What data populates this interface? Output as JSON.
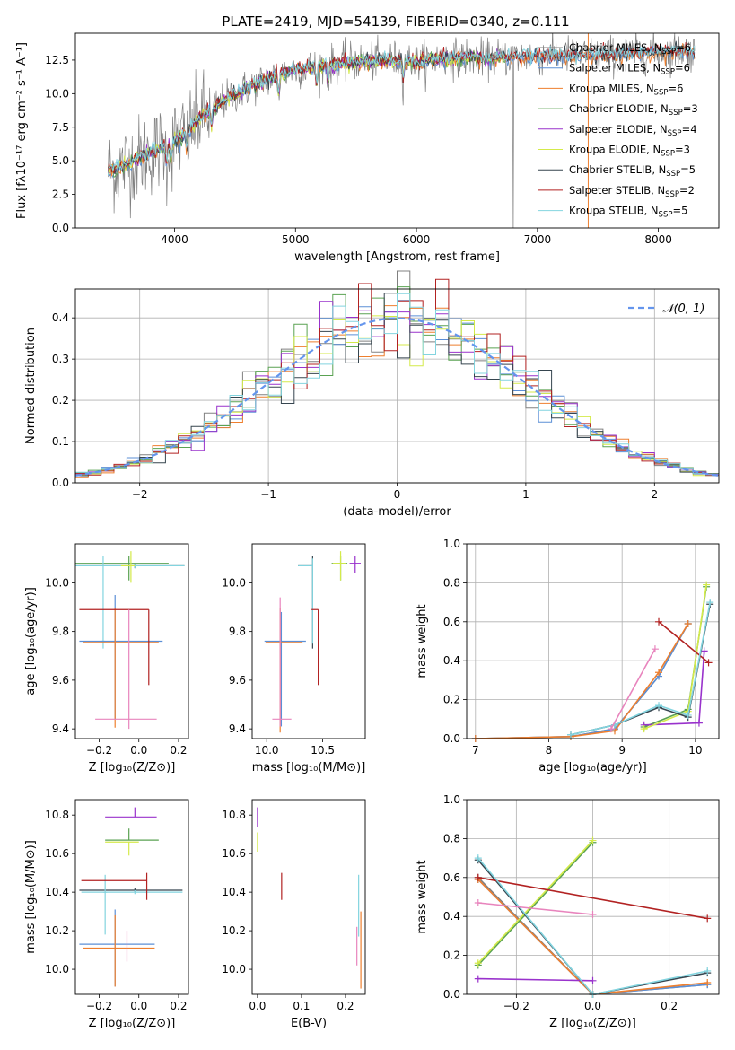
{
  "figure_title": "PLATE=2419, MJD=54139, FIBERID=0340, z=0.111",
  "colors": {
    "chabrier_miles": "#808080",
    "salpeter_miles": "#5b8fd6",
    "kroupa_miles": "#ee7f2e",
    "chabrier_elodie": "#5aa252",
    "salpeter_elodie": "#9932cc",
    "kroupa_elodie": "#d4ea4a",
    "chabrier_stelib": "#36454f",
    "salpeter_stelib": "#b22222",
    "kroupa_stelib": "#82d4df",
    "pink": "#e884bd",
    "normal": "#6495ed",
    "grid": "#b0b0b0"
  },
  "chart_data": [
    {
      "id": "spectrum",
      "type": "line",
      "xlabel": "wavelength [Angstrom, rest frame]",
      "ylabel": "Flux [fλ10⁻¹⁷ erg cm⁻² s⁻¹ A⁻¹]",
      "xlim": [
        3180,
        8500
      ],
      "ylim": [
        0,
        14.5
      ],
      "xticks": [
        4000,
        5000,
        6000,
        7000,
        8000
      ],
      "yticks": [
        0.0,
        2.5,
        5.0,
        7.5,
        10.0,
        12.5
      ],
      "grid": false,
      "legend_position": "right",
      "continuum": {
        "x": [
          3450,
          3550,
          3650,
          3750,
          3850,
          3950,
          4050,
          4150,
          4250,
          4350,
          4450,
          4600,
          4800,
          5000,
          5200,
          5400,
          5600,
          5800,
          6000,
          6200,
          6400,
          6600,
          6800,
          7000,
          7200,
          7400,
          7600,
          7800,
          8000,
          8200,
          8300
        ],
        "y": [
          4.3,
          4.5,
          5.0,
          5.4,
          5.8,
          6.2,
          6.8,
          7.6,
          8.5,
          9.1,
          9.7,
          10.4,
          11.2,
          11.8,
          12.1,
          12.3,
          12.4,
          12.5,
          12.4,
          12.6,
          12.7,
          12.6,
          12.8,
          12.8,
          12.9,
          12.8,
          12.9,
          13.0,
          13.1,
          13.2,
          13.1
        ]
      },
      "legend": [
        {
          "label": "Chabrier MILES, N",
          "sub": "SSP",
          "value": "=6",
          "color_key": "chabrier_miles"
        },
        {
          "label": "Salpeter MILES, N",
          "sub": "SSP",
          "value": "=6",
          "color_key": "salpeter_miles"
        },
        {
          "label": "Kroupa MILES, N",
          "sub": "SSP",
          "value": "=6",
          "color_key": "kroupa_miles"
        },
        {
          "label": "Chabrier ELODIE, N",
          "sub": "SSP",
          "value": "=3",
          "color_key": "chabrier_elodie"
        },
        {
          "label": "Salpeter ELODIE, N",
          "sub": "SSP",
          "value": "=4",
          "color_key": "salpeter_elodie"
        },
        {
          "label": "Kroupa ELODIE, N",
          "sub": "SSP",
          "value": "=3",
          "color_key": "kroupa_elodie"
        },
        {
          "label": "Chabrier STELIB, N",
          "sub": "SSP",
          "value": "=5",
          "color_key": "chabrier_stelib"
        },
        {
          "label": "Salpeter STELIB, N",
          "sub": "SSP",
          "value": "=2",
          "color_key": "salpeter_stelib"
        },
        {
          "label": "Kroupa STELIB, N",
          "sub": "SSP",
          "value": "=5",
          "color_key": "kroupa_stelib"
        }
      ]
    },
    {
      "id": "residuals",
      "type": "histogram",
      "xlabel": "(data-model)/error",
      "ylabel": "Normed distribution",
      "xlim": [
        -2.5,
        2.5
      ],
      "ylim": [
        0,
        0.47
      ],
      "xticks": [
        -2,
        -1,
        0,
        1,
        2
      ],
      "yticks": [
        0.0,
        0.1,
        0.2,
        0.3,
        0.4
      ],
      "grid": true,
      "bin_width": 0.1,
      "legend": [
        {
          "label": "𝒩(0, 1)",
          "color_key": "normal",
          "style": "dashed"
        }
      ],
      "legend_position": "top-right",
      "reference_curve": "normal(0,1)"
    },
    {
      "id": "age_vs_Z",
      "type": "errorbar",
      "xlabel": "Z [log₁₀(Z/Z⊙)]",
      "ylabel": "age  [log₁₀(age/yr)]",
      "xlim": [
        -0.32,
        0.25
      ],
      "ylim": [
        9.36,
        10.16
      ],
      "xticks": [
        -0.2,
        0.0,
        0.2
      ],
      "yticks": [
        9.4,
        9.6,
        9.8,
        10.0
      ],
      "grid": false,
      "points": [
        {
          "x": -0.02,
          "xl": 0.31,
          "xr": 0.25,
          "y": 10.07,
          "yl": 0.01,
          "yu": 0.01,
          "color_key": "chabrier_stelib"
        },
        {
          "x": -0.02,
          "xl": 0.31,
          "xr": 0.25,
          "y": 10.07,
          "yl": 0.01,
          "yu": 0.01,
          "color_key": "kroupa_stelib"
        },
        {
          "x": -0.05,
          "xl": 0.27,
          "xr": 0.2,
          "y": 10.08,
          "yl": 0.07,
          "yu": 0.03,
          "color_key": "chabrier_elodie"
        },
        {
          "x": -0.04,
          "xl": 0.05,
          "xr": 0.02,
          "y": 10.07,
          "yl": 0.07,
          "yu": 0.06,
          "color_key": "kroupa_elodie"
        },
        {
          "x": -0.18,
          "xl": 0.01,
          "xr": 0.01,
          "y": 9.76,
          "yl": 0.03,
          "yu": 0.35,
          "color_key": "kroupa_stelib"
        },
        {
          "x": -0.12,
          "xl": 0.18,
          "xr": 0.24,
          "y": 9.76,
          "yl": 0.32,
          "yu": 0.19,
          "color_key": "salpeter_miles"
        },
        {
          "x": -0.12,
          "xl": 0.16,
          "xr": 0.22,
          "y": 9.755,
          "yl": 0.35,
          "yu": 0.14,
          "color_key": "kroupa_miles"
        },
        {
          "x": -0.1,
          "xl": 0.2,
          "xr": 0.15,
          "y": 9.89,
          "yl": 0.0,
          "yu": 0.0,
          "color_key": "salpeter_stelib"
        },
        {
          "x": 0.05,
          "xl": 0.0,
          "xr": 0.0,
          "y": 9.7,
          "yl": 0.12,
          "yu": 0.19,
          "color_key": "salpeter_stelib"
        },
        {
          "x": -0.05,
          "xl": 0.17,
          "xr": 0.14,
          "y": 9.44,
          "yl": 0.04,
          "yu": 0.45,
          "color_key": "pink"
        }
      ]
    },
    {
      "id": "age_vs_mass",
      "type": "errorbar",
      "xlabel": "mass [log₁₀(M/M⊙)]",
      "ylabel": "",
      "xlim": [
        9.87,
        10.88
      ],
      "ylim": [
        9.36,
        10.16
      ],
      "xticks": [
        10.0,
        10.5
      ],
      "yticks": [
        9.4,
        9.6,
        9.8,
        10.0
      ],
      "grid": false,
      "points": [
        {
          "x": 10.41,
          "xl": 0.13,
          "xr": 0.0,
          "y": 10.07,
          "yl": 0.34,
          "yu": 0.04,
          "color_key": "chabrier_stelib"
        },
        {
          "x": 10.41,
          "xl": 0.13,
          "xr": 0.0,
          "y": 10.07,
          "yl": 0.32,
          "yu": 0.03,
          "color_key": "kroupa_stelib"
        },
        {
          "x": 10.66,
          "xl": 0.08,
          "xr": 0.06,
          "y": 10.08,
          "yl": 0.07,
          "yu": 0.03,
          "color_key": "chabrier_elodie"
        },
        {
          "x": 10.66,
          "xl": 0.07,
          "xr": 0.05,
          "y": 10.08,
          "yl": 0.07,
          "yu": 0.05,
          "color_key": "kroupa_elodie"
        },
        {
          "x": 10.79,
          "xl": 0.05,
          "xr": 0.05,
          "y": 10.08,
          "yl": 0.04,
          "yu": 0.03,
          "color_key": "salpeter_elodie"
        },
        {
          "x": 10.13,
          "xl": 0.15,
          "xr": 0.22,
          "y": 9.76,
          "yl": 0.35,
          "yu": 0.12,
          "color_key": "salpeter_miles"
        },
        {
          "x": 10.12,
          "xl": 0.13,
          "xr": 0.2,
          "y": 9.755,
          "yl": 0.37,
          "yu": 0.14,
          "color_key": "kroupa_miles"
        },
        {
          "x": 10.46,
          "xl": 0.06,
          "xr": 0.0,
          "y": 9.89,
          "yl": 0.31,
          "yu": 0.0,
          "color_key": "salpeter_stelib"
        },
        {
          "x": 10.12,
          "xl": 0.07,
          "xr": 0.1,
          "y": 9.44,
          "yl": 0.03,
          "yu": 0.5,
          "color_key": "pink"
        }
      ]
    },
    {
      "id": "weight_vs_age",
      "type": "line",
      "xlabel": "age  [log₁₀(age/yr)]",
      "ylabel": "mass weight",
      "xlim": [
        6.88,
        10.32
      ],
      "ylim": [
        0,
        1.0
      ],
      "xticks": [
        7,
        8,
        9,
        10
      ],
      "yticks": [
        0.0,
        0.2,
        0.4,
        0.6,
        0.8,
        1.0
      ],
      "grid": true,
      "series": [
        {
          "color_key": "chabrier_miles",
          "x": [
            7.0,
            8.3,
            8.9,
            9.5,
            9.9
          ],
          "y": [
            0.0,
            0.01,
            0.05,
            0.32,
            0.59
          ]
        },
        {
          "color_key": "salpeter_miles",
          "x": [
            7.0,
            8.3,
            8.9,
            9.5,
            9.9
          ],
          "y": [
            0.0,
            0.01,
            0.05,
            0.32,
            0.59
          ]
        },
        {
          "color_key": "kroupa_miles",
          "x": [
            7.0,
            8.3,
            8.9,
            9.5,
            9.9
          ],
          "y": [
            0.0,
            0.01,
            0.04,
            0.34,
            0.59
          ]
        },
        {
          "color_key": "chabrier_elodie",
          "x": [
            9.3,
            9.9,
            10.15
          ],
          "y": [
            0.06,
            0.15,
            0.78
          ]
        },
        {
          "color_key": "salpeter_elodie",
          "x": [
            9.3,
            10.05,
            10.12
          ],
          "y": [
            0.07,
            0.08,
            0.45
          ]
        },
        {
          "color_key": "kroupa_elodie",
          "x": [
            9.3,
            9.9,
            10.15
          ],
          "y": [
            0.05,
            0.14,
            0.79
          ]
        },
        {
          "color_key": "chabrier_stelib",
          "x": [
            8.3,
            8.9,
            9.5,
            9.9,
            10.2
          ],
          "y": [
            0.02,
            0.07,
            0.16,
            0.11,
            0.69
          ]
        },
        {
          "color_key": "salpeter_stelib",
          "x": [
            9.5,
            10.18
          ],
          "y": [
            0.6,
            0.39
          ]
        },
        {
          "color_key": "kroupa_stelib",
          "x": [
            8.3,
            8.9,
            9.5,
            9.9,
            10.2
          ],
          "y": [
            0.02,
            0.07,
            0.17,
            0.12,
            0.7
          ]
        },
        {
          "color_key": "pink",
          "x": [
            8.85,
            9.45
          ],
          "y": [
            0.05,
            0.46
          ]
        }
      ]
    },
    {
      "id": "mass_vs_Z",
      "type": "errorbar",
      "xlabel": "Z [log₁₀(Z/Z⊙)]",
      "ylabel": "mass [log₁₀(M/M⊙)]",
      "xlim": [
        -0.32,
        0.25
      ],
      "ylim": [
        9.87,
        10.88
      ],
      "xticks": [
        -0.2,
        0.0,
        0.2
      ],
      "yticks": [
        10.0,
        10.2,
        10.4,
        10.6,
        10.8
      ],
      "grid": false,
      "points": [
        {
          "x": -0.02,
          "xl": 0.28,
          "xr": 0.24,
          "y": 10.41,
          "yl": 0.01,
          "yu": 0.01,
          "color_key": "chabrier_stelib"
        },
        {
          "x": -0.02,
          "xl": 0.27,
          "xr": 0.24,
          "y": 10.4,
          "yl": 0.01,
          "yu": 0.01,
          "color_key": "kroupa_stelib"
        },
        {
          "x": -0.02,
          "xl": 0.15,
          "xr": 0.11,
          "y": 10.79,
          "yl": 0.0,
          "yu": 0.05,
          "color_key": "salpeter_elodie"
        },
        {
          "x": -0.05,
          "xl": 0.12,
          "xr": 0.15,
          "y": 10.67,
          "yl": 0.0,
          "yu": 0.06,
          "color_key": "chabrier_elodie"
        },
        {
          "x": -0.05,
          "xl": 0.12,
          "xr": 0.05,
          "y": 10.66,
          "yl": 0.07,
          "yu": 0.0,
          "color_key": "kroupa_elodie"
        },
        {
          "x": -0.17,
          "xl": 0.01,
          "xr": 0.01,
          "y": 10.4,
          "yl": 0.22,
          "yu": 0.09,
          "color_key": "kroupa_stelib"
        },
        {
          "x": -0.1,
          "xl": 0.19,
          "xr": 0.14,
          "y": 10.46,
          "yl": 0.0,
          "yu": 0.0,
          "color_key": "salpeter_stelib"
        },
        {
          "x": 0.04,
          "xl": 0.0,
          "xr": 0.0,
          "y": 10.43,
          "yl": 0.07,
          "yu": 0.07,
          "color_key": "salpeter_stelib"
        },
        {
          "x": -0.12,
          "xl": 0.18,
          "xr": 0.2,
          "y": 10.13,
          "yl": 0.22,
          "yu": 0.18,
          "color_key": "salpeter_miles"
        },
        {
          "x": -0.12,
          "xl": 0.16,
          "xr": 0.2,
          "y": 10.11,
          "yl": 0.2,
          "yu": 0.17,
          "color_key": "kroupa_miles"
        },
        {
          "x": -0.06,
          "xl": 0.0,
          "xr": 0.0,
          "y": 10.13,
          "yl": 0.09,
          "yu": 0.07,
          "color_key": "pink"
        }
      ]
    },
    {
      "id": "mass_vs_EBV",
      "type": "errorbar",
      "xlabel": "E(B-V)",
      "ylabel": "",
      "xlim": [
        -0.012,
        0.245
      ],
      "ylim": [
        9.87,
        10.88
      ],
      "xticks": [
        0.0,
        0.1,
        0.2
      ],
      "yticks": [
        10.0,
        10.2,
        10.4,
        10.6,
        10.8
      ],
      "grid": false,
      "points": [
        {
          "x": 0.0,
          "y": 10.79,
          "yl": 0.05,
          "yu": 0.05,
          "color_key": "salpeter_elodie"
        },
        {
          "x": 0.0,
          "y": 10.66,
          "yl": 0.05,
          "yu": 0.05,
          "color_key": "kroupa_elodie"
        },
        {
          "x": 0.055,
          "y": 10.43,
          "yl": 0.07,
          "yu": 0.07,
          "color_key": "salpeter_stelib"
        },
        {
          "x": 0.23,
          "y": 10.33,
          "yl": 0.16,
          "yu": 0.16,
          "color_key": "kroupa_stelib"
        },
        {
          "x": 0.226,
          "y": 10.12,
          "yl": 0.1,
          "yu": 0.1,
          "color_key": "pink"
        },
        {
          "x": 0.235,
          "y": 10.1,
          "yl": 0.2,
          "yu": 0.2,
          "color_key": "kroupa_miles"
        }
      ]
    },
    {
      "id": "weight_vs_Z",
      "type": "line",
      "xlabel": "Z [log₁₀(Z/Z⊙)]",
      "ylabel": "mass weight",
      "xlim": [
        -0.33,
        0.33
      ],
      "ylim": [
        0,
        1.0
      ],
      "xticks": [
        -0.2,
        0.0,
        0.2
      ],
      "yticks": [
        0.0,
        0.2,
        0.4,
        0.6,
        0.8,
        1.0
      ],
      "grid": true,
      "series": [
        {
          "color_key": "chabrier_miles",
          "x": [
            -0.3,
            0.0,
            0.3
          ],
          "y": [
            0.6,
            0.0,
            0.05
          ]
        },
        {
          "color_key": "salpeter_miles",
          "x": [
            -0.3,
            0.0,
            0.3
          ],
          "y": [
            0.59,
            0.0,
            0.05
          ]
        },
        {
          "color_key": "kroupa_miles",
          "x": [
            -0.3,
            0.0,
            0.3
          ],
          "y": [
            0.59,
            0.0,
            0.06
          ]
        },
        {
          "color_key": "chabrier_elodie",
          "x": [
            -0.3,
            0.0
          ],
          "y": [
            0.15,
            0.78
          ]
        },
        {
          "color_key": "salpeter_elodie",
          "x": [
            -0.3,
            0.0
          ],
          "y": [
            0.08,
            0.07
          ]
        },
        {
          "color_key": "kroupa_elodie",
          "x": [
            -0.3,
            0.0
          ],
          "y": [
            0.16,
            0.79
          ]
        },
        {
          "color_key": "chabrier_stelib",
          "x": [
            -0.3,
            0.0,
            0.3
          ],
          "y": [
            0.69,
            0.0,
            0.11
          ]
        },
        {
          "color_key": "salpeter_stelib",
          "x": [
            -0.3,
            0.3
          ],
          "y": [
            0.6,
            0.39
          ]
        },
        {
          "color_key": "kroupa_stelib",
          "x": [
            -0.3,
            0.0,
            0.3
          ],
          "y": [
            0.7,
            0.0,
            0.12
          ]
        },
        {
          "color_key": "pink",
          "x": [
            -0.3,
            0.0
          ],
          "y": [
            0.47,
            0.41
          ]
        }
      ]
    }
  ]
}
